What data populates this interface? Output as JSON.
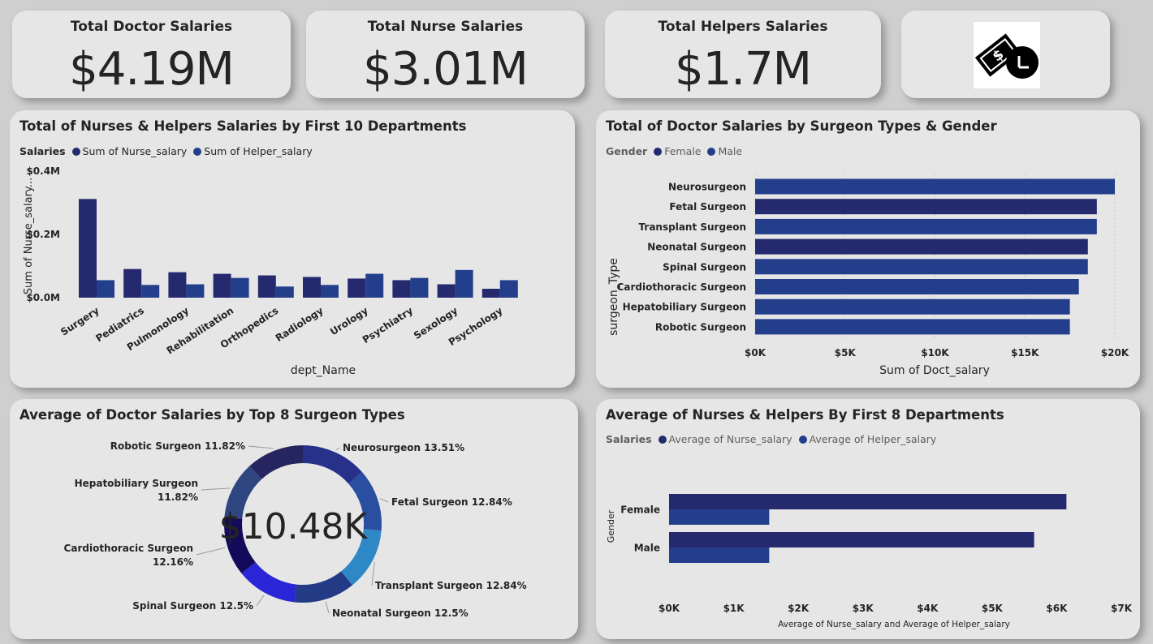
{
  "kpis": [
    {
      "title": "Total Doctor Salaries",
      "value": "$4.19M"
    },
    {
      "title": "Total Nurse Salaries",
      "value": "$3.01M"
    },
    {
      "title": "Total Helpers Salaries",
      "value": "$1.7M"
    }
  ],
  "icon": {
    "name": "money-salary-icon"
  },
  "colors": {
    "female": "#25296d",
    "male": "#233f8c",
    "card_bg": "#e6e6e6",
    "page_bg": "#cfcfcf"
  },
  "dept_chart": {
    "title": "Total of Nurses & Helpers Salaries by First 10 Departments",
    "legend_title": "Salaries",
    "legend": [
      "Sum of Nurse_salary",
      "Sum of Helper_salary"
    ],
    "xlabel": "dept_Name",
    "ylabel": "Sum of Nurse_salary...",
    "ytick_labels": [
      "$0.4M",
      "$0.2M",
      "$0.0M"
    ]
  },
  "surgeon_chart": {
    "title": "Total of Doctor Salaries by Surgeon Types & Gender",
    "legend_title": "Gender",
    "legend": [
      "Female",
      "Male"
    ],
    "xlabel": "Sum of Doct_salary",
    "ylabel": "surgeon_Type",
    "xtick_labels": [
      "$0K",
      "$5K",
      "$10K",
      "$15K",
      "$20K"
    ]
  },
  "donut_chart": {
    "title": "Average of Doctor Salaries by Top 8 Surgeon Types",
    "center_value": "$10.48K"
  },
  "avg_chart": {
    "title": "Average of Nurses & Helpers By First 8 Departments",
    "legend_title": "Salaries",
    "legend": [
      "Average of Nurse_salary",
      "Average of Helper_salary"
    ],
    "xlabel": "Average of Nurse_salary and Average of Helper_salary",
    "ylabel": "Gender",
    "xtick_labels": [
      "$0K",
      "$1K",
      "$2K",
      "$3K",
      "$4K",
      "$5K",
      "$6K",
      "$7K"
    ]
  },
  "chart_data": [
    {
      "type": "bar",
      "title": "Total of Nurses & Helpers Salaries by First 10 Departments",
      "xlabel": "dept_Name",
      "ylabel": "Sum of Nurse_salary...",
      "ylim": [
        0,
        0.4
      ],
      "units": "$M",
      "legend_position": "top-left",
      "categories": [
        "Surgery",
        "Pediatrics",
        "Pulmonology",
        "Rehabilitation",
        "Orthopedics",
        "Radiology",
        "Urology",
        "Psychiatry",
        "Sexology",
        "Psychology"
      ],
      "series": [
        {
          "name": "Sum of Nurse_salary",
          "color": "#25296d",
          "values": [
            0.31,
            0.09,
            0.08,
            0.075,
            0.07,
            0.065,
            0.06,
            0.055,
            0.042,
            0.028
          ]
        },
        {
          "name": "Sum of Helper_salary",
          "color": "#233f8c",
          "values": [
            0.055,
            0.04,
            0.042,
            0.062,
            0.035,
            0.04,
            0.075,
            0.062,
            0.087,
            0.055
          ]
        }
      ]
    },
    {
      "type": "bar",
      "orientation": "horizontal",
      "title": "Total of Doctor Salaries by Surgeon Types & Gender",
      "xlabel": "Sum of Doct_salary",
      "ylabel": "surgeon_Type",
      "xlim": [
        0,
        20
      ],
      "units": "$K",
      "legend_position": "top-left",
      "categories": [
        "Neurosurgeon",
        "Fetal Surgeon",
        "Transplant Surgeon",
        "Neonatal Surgeon",
        "Spinal Surgeon",
        "Cardiothoracic Surgeon",
        "Hepatobiliary Surgeon",
        "Robotic Surgeon"
      ],
      "values": [
        20.0,
        19.0,
        19.0,
        18.5,
        18.5,
        18.0,
        17.5,
        17.5
      ],
      "gender": [
        "Male",
        "Female",
        "Male",
        "Female",
        "Male",
        "Male",
        "Male",
        "Male"
      ]
    },
    {
      "type": "pie",
      "donut": true,
      "title": "Average of Doctor Salaries by Top 8 Surgeon Types",
      "center_value": "$10.48K",
      "slices": [
        {
          "label": "Neurosurgeon 13.51%",
          "value": 13.51,
          "color": "#27318a"
        },
        {
          "label": "Fetal Surgeon 12.84%",
          "value": 12.84,
          "color": "#2a4ea0"
        },
        {
          "label": "Transplant Surgeon 12.84%",
          "value": 12.84,
          "color": "#2f88c6"
        },
        {
          "label": "Neonatal Surgeon 12.5%",
          "value": 12.5,
          "color": "#233a84"
        },
        {
          "label": "Spinal Surgeon 12.5%",
          "value": 12.5,
          "color": "#2a25d6"
        },
        {
          "label": "Cardiothoracic Surgeon\n12.16%",
          "value": 12.16,
          "color": "#140a5c"
        },
        {
          "label": "Hepatobiliary Surgeon\n11.82%",
          "value": 11.82,
          "color": "#2e4580"
        },
        {
          "label": "Robotic Surgeon 11.82%",
          "value": 11.82,
          "color": "#25255f"
        }
      ]
    },
    {
      "type": "bar",
      "orientation": "horizontal",
      "title": "Average of Nurses & Helpers By First 8 Departments",
      "xlabel": "Average of Nurse_salary and Average of Helper_salary",
      "ylabel": "Gender",
      "xlim": [
        0,
        7
      ],
      "units": "$K",
      "legend_position": "top-left",
      "categories": [
        "Female",
        "Male"
      ],
      "series": [
        {
          "name": "Average of Nurse_salary",
          "color": "#25296d",
          "values": [
            6.15,
            5.65
          ]
        },
        {
          "name": "Average of Helper_salary",
          "color": "#233f8c",
          "values": [
            1.55,
            1.55
          ]
        }
      ]
    }
  ]
}
